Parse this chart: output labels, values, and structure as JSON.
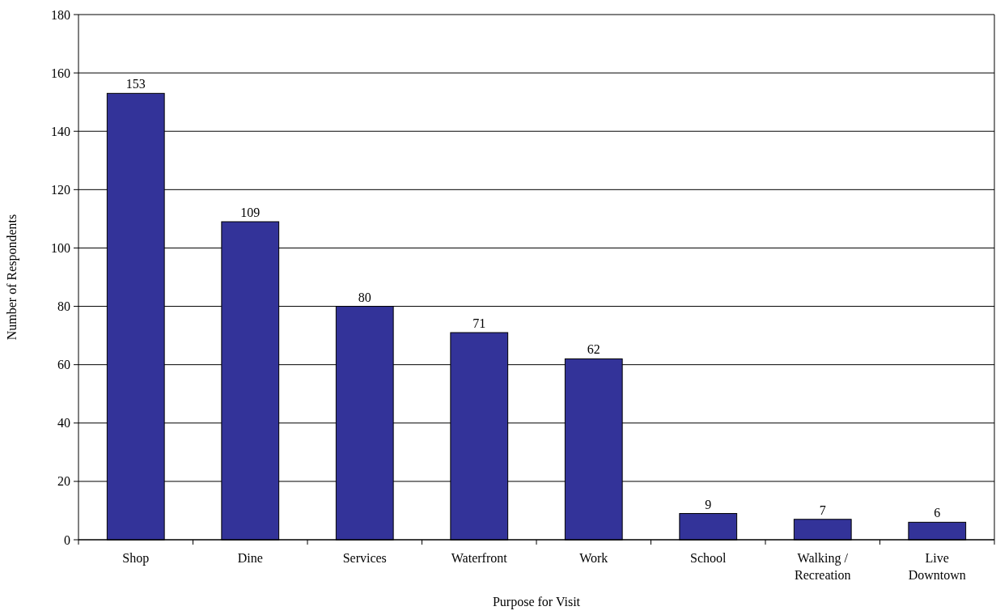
{
  "chart_data": {
    "type": "bar",
    "xlabel": "Purpose for Visit",
    "ylabel": "Number of Respondents",
    "categories": [
      "Shop",
      "Dine",
      "Services",
      "Waterfront",
      "Work",
      "School",
      "Walking / Recreation",
      "Live Downtown"
    ],
    "values": [
      153,
      109,
      80,
      71,
      62,
      9,
      7,
      6
    ],
    "color": "#333399",
    "ylim": [
      0,
      180
    ],
    "yticks": [
      0,
      20,
      40,
      60,
      80,
      100,
      120,
      140,
      160,
      180
    ],
    "grid": "y",
    "data_labels": true
  }
}
